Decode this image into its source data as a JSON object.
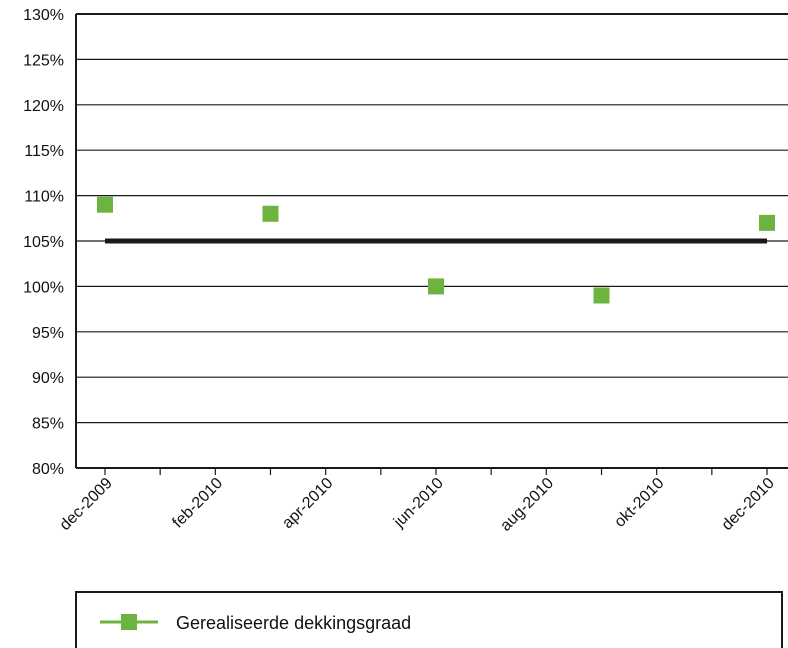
{
  "chart_data": {
    "type": "scatter",
    "title": "",
    "xlabel": "",
    "ylabel": "",
    "x_tick_labels": [
      "dec-2009",
      "feb-2010",
      "apr-2010",
      "jun-2010",
      "aug-2010",
      "okt-2010",
      "dec-2010"
    ],
    "y_tick_labels": [
      "80%",
      "85%",
      "90%",
      "95%",
      "100%",
      "105%",
      "110%",
      "115%",
      "120%",
      "125%",
      "130%"
    ],
    "ylim": [
      80,
      130
    ],
    "grid": true,
    "legend_position": "bottom",
    "series": [
      {
        "name": "Gerealiseerde dekkingsgraad",
        "color": "#6db33f",
        "marker": "square",
        "x": [
          "dec-2009",
          "mrt-2010",
          "jun-2010",
          "sep-2010",
          "dec-2010"
        ],
        "values": [
          109,
          108,
          100,
          99,
          107
        ]
      }
    ],
    "reference_line": {
      "value": 105,
      "color": "#1a1a1a",
      "from": "dec-2009",
      "to": "dec-2010"
    }
  }
}
